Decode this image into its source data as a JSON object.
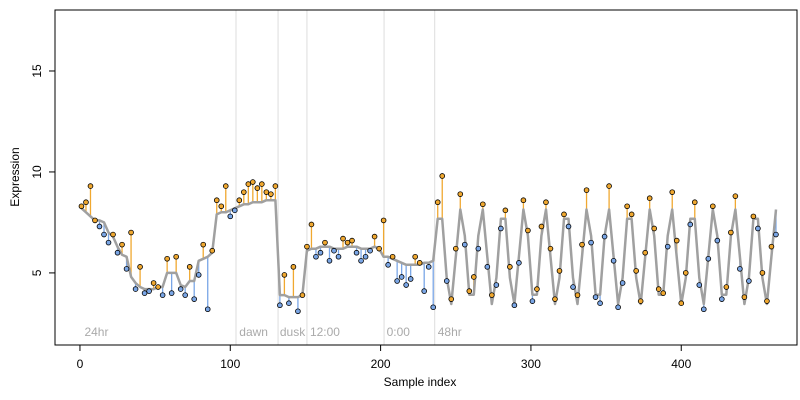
{
  "chart_data": {
    "type": "residual-scatter",
    "x_label": "Sample index",
    "y_label": "Expression",
    "xlim": [
      -16.6,
      477
    ],
    "ylim": [
      1.43,
      18.02
    ],
    "xticks": [
      0,
      100,
      200,
      300,
      400
    ],
    "yticks": [
      5,
      10,
      15
    ],
    "colors": {
      "above": "#f0a830",
      "below": "#7aa6e6",
      "fit": "#a0a0a0",
      "guide": "#dddddd"
    },
    "vlines": [
      103.8,
      131.8,
      151,
      202.3,
      236
    ],
    "annotations": [
      {
        "x": 3,
        "label": "24hr"
      },
      {
        "x": 106,
        "label": "dawn"
      },
      {
        "x": 133,
        "label": "dusk"
      },
      {
        "x": 153,
        "label": "12:00"
      },
      {
        "x": 204,
        "label": "0:00"
      },
      {
        "x": 238,
        "label": "48hr"
      }
    ],
    "x": [
      1,
      4,
      7,
      10,
      13,
      16,
      19,
      22,
      25,
      28,
      31,
      34,
      37,
      40,
      43,
      46,
      49,
      52,
      55,
      58,
      61,
      64,
      67,
      70,
      73,
      76,
      79,
      82,
      85,
      88,
      91,
      94,
      97,
      100,
      103,
      106,
      109,
      112,
      115,
      118,
      121,
      124,
      127,
      130,
      133,
      136,
      139,
      142,
      145,
      148,
      151,
      154,
      157,
      160,
      163,
      166,
      169,
      172,
      175,
      178,
      181,
      184,
      187,
      190,
      193,
      196,
      199,
      202,
      205,
      208,
      211,
      214,
      217,
      220,
      223,
      226,
      229,
      232,
      235,
      238,
      241,
      244,
      247,
      250,
      253,
      256,
      259,
      262,
      265,
      268,
      271,
      274,
      277,
      280,
      283,
      286,
      289,
      292,
      295,
      298,
      301,
      304,
      307,
      310,
      313,
      316,
      319,
      322,
      325,
      328,
      331,
      334,
      337,
      340,
      343,
      346,
      349,
      352,
      355,
      358,
      361,
      364,
      367,
      370,
      373,
      376,
      379,
      382,
      385,
      388,
      391,
      394,
      397,
      400,
      403,
      406,
      409,
      412,
      415,
      418,
      421,
      424,
      427,
      430,
      433,
      436,
      439,
      442,
      445,
      448,
      451,
      454,
      457,
      460,
      463
    ],
    "values": [
      8.3,
      8.5,
      9.3,
      7.6,
      7.3,
      6.9,
      6.5,
      6.9,
      6.0,
      6.4,
      5.2,
      7.0,
      4.2,
      5.3,
      4.0,
      4.1,
      4.5,
      4.3,
      3.9,
      5.7,
      4.0,
      5.8,
      4.2,
      3.9,
      5.3,
      3.7,
      4.9,
      6.4,
      3.2,
      6.1,
      8.6,
      8.3,
      9.3,
      7.8,
      8.1,
      8.6,
      9.0,
      9.4,
      9.5,
      9.2,
      9.4,
      9.0,
      8.9,
      9.3,
      3.4,
      4.9,
      3.5,
      5.3,
      3.1,
      3.9,
      6.3,
      7.4,
      5.8,
      6.0,
      6.5,
      5.6,
      6.1,
      5.8,
      6.7,
      6.5,
      6.6,
      6.0,
      5.6,
      5.8,
      6.1,
      6.8,
      6.2,
      7.6,
      5.4,
      5.8,
      4.6,
      4.8,
      4.4,
      4.7,
      5.8,
      5.5,
      4.1,
      5.3,
      3.3,
      8.5,
      9.8,
      4.6,
      3.7,
      6.2,
      8.9,
      6.4,
      4.1,
      4.8,
      6.2,
      8.4,
      5.3,
      3.9,
      4.4,
      7.2,
      8.1,
      5.3,
      3.4,
      5.5,
      8.6,
      7.1,
      3.6,
      4.2,
      7.3,
      8.5,
      6.2,
      3.7,
      5.1,
      7.9,
      7.3,
      4.3,
      3.9,
      6.4,
      9.1,
      6.5,
      3.8,
      3.5,
      6.8,
      9.3,
      5.6,
      3.3,
      4.5,
      8.3,
      7.9,
      5.1,
      3.6,
      6.0,
      8.7,
      7.2,
      4.2,
      4.0,
      6.3,
      9.0,
      6.6,
      3.5,
      5.0,
      7.4,
      8.5,
      4.4,
      3.2,
      5.7,
      8.3,
      6.6,
      3.7,
      4.3,
      7.0,
      8.8,
      5.2,
      3.8,
      4.6,
      7.8,
      7.2,
      5.0,
      3.6,
      6.3,
      6.9
    ],
    "fitted": [
      8.2,
      8.0,
      7.8,
      7.6,
      7.6,
      7.5,
      7.0,
      6.8,
      6.3,
      5.9,
      5.8,
      4.8,
      4.5,
      4.3,
      4.2,
      4.2,
      4.2,
      4.3,
      4.3,
      5.0,
      5.0,
      5.0,
      4.4,
      4.3,
      4.6,
      4.6,
      5.6,
      5.7,
      5.8,
      6.0,
      7.9,
      8.0,
      8.0,
      8.1,
      8.2,
      8.3,
      8.4,
      8.4,
      8.5,
      8.5,
      8.5,
      8.6,
      8.6,
      8.6,
      3.9,
      3.9,
      3.8,
      3.8,
      3.8,
      3.9,
      6.1,
      6.2,
      6.2,
      6.3,
      6.3,
      6.3,
      6.2,
      6.2,
      6.2,
      6.3,
      6.3,
      6.3,
      6.2,
      6.2,
      6.2,
      6.3,
      6.2,
      5.8,
      5.8,
      5.7,
      5.6,
      5.5,
      5.4,
      5.4,
      5.4,
      5.4,
      5.5,
      5.5,
      5.6,
      7.68,
      7.68,
      4.76,
      3.46,
      5.8,
      8.14,
      6.84,
      3.92,
      3.92,
      6.84,
      8.14,
      5.8,
      3.46,
      4.76,
      7.68,
      7.68,
      4.76,
      3.46,
      5.8,
      8.14,
      6.84,
      3.92,
      3.92,
      6.84,
      8.14,
      5.8,
      3.46,
      4.76,
      7.68,
      7.68,
      4.76,
      3.46,
      5.8,
      8.14,
      6.84,
      3.92,
      3.92,
      6.84,
      8.14,
      5.8,
      3.46,
      4.76,
      7.68,
      7.68,
      4.76,
      3.46,
      5.8,
      8.14,
      6.84,
      3.92,
      3.92,
      6.84,
      8.14,
      5.8,
      3.46,
      4.76,
      7.68,
      7.68,
      4.76,
      3.46,
      5.8,
      8.14,
      6.84,
      3.92,
      3.92,
      6.84,
      8.14,
      5.8,
      3.46,
      4.76,
      7.68,
      7.68,
      4.76,
      3.46,
      5.8,
      8.14
    ]
  }
}
